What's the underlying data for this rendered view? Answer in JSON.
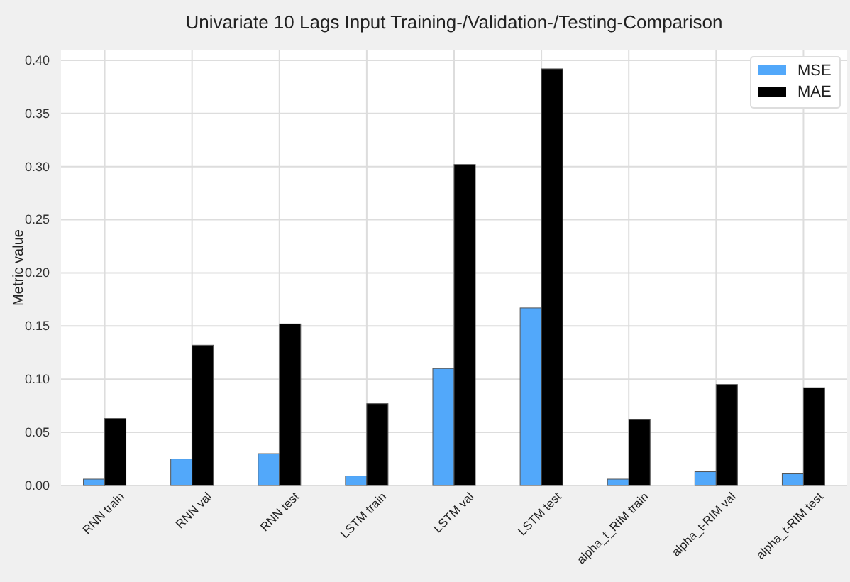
{
  "chart_data": {
    "type": "bar",
    "title": "Univariate 10 Lags Input Training-/Validation-/Testing-Comparison",
    "ylabel": "Metric value",
    "categories": [
      "RNN train",
      "RNN val",
      "RNN test",
      "LSTM train",
      "LSTM val",
      "LSTM test",
      "alpha_t_RIM train",
      "alpha_t-RIM val",
      "alpha_t-RIM test"
    ],
    "series": [
      {
        "name": "MSE",
        "color": "#52a8fa",
        "values": [
          0.006,
          0.025,
          0.03,
          0.009,
          0.11,
          0.167,
          0.006,
          0.013,
          0.011
        ]
      },
      {
        "name": "MAE",
        "color": "#000000",
        "values": [
          0.063,
          0.132,
          0.152,
          0.077,
          0.302,
          0.392,
          0.062,
          0.095,
          0.092
        ]
      }
    ],
    "ylim": [
      0,
      0.41
    ],
    "yticks": [
      {
        "value": 0,
        "label": "0.00"
      },
      {
        "value": 0.05,
        "label": "0.05"
      },
      {
        "value": 0.1,
        "label": "0.10"
      },
      {
        "value": 0.15,
        "label": "0.15"
      },
      {
        "value": 0.2,
        "label": "0.20"
      },
      {
        "value": 0.25,
        "label": "0.25"
      },
      {
        "value": 0.3,
        "label": "0.30"
      },
      {
        "value": 0.35,
        "label": "0.35"
      },
      {
        "value": 0.4,
        "label": "0.40"
      }
    ],
    "grid": true,
    "legend": "top right"
  }
}
